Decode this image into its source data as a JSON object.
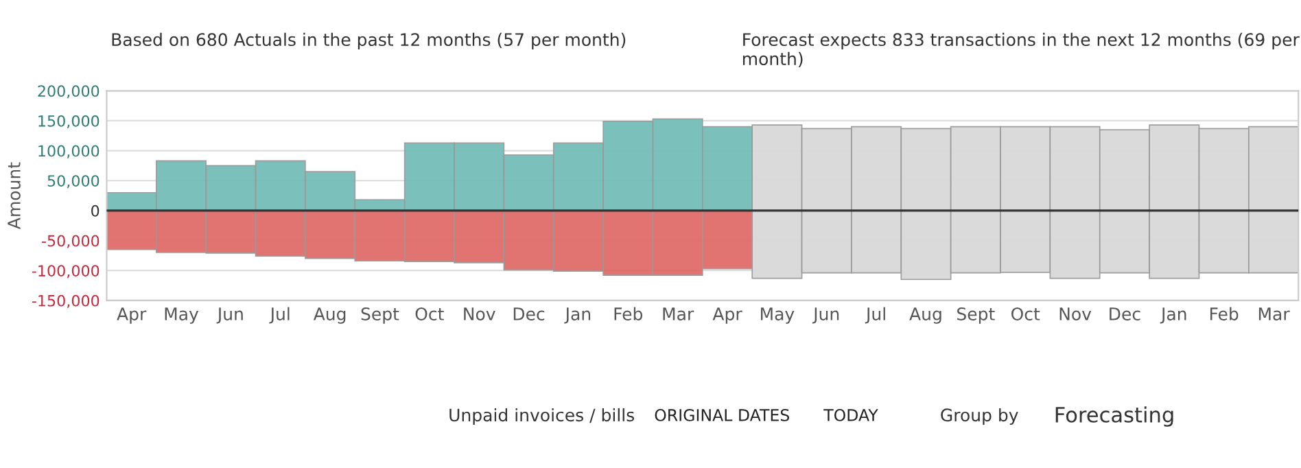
{
  "chart_data": {
    "type": "bar",
    "ylabel": "Amount",
    "categories": [
      "Apr",
      "May",
      "Jun",
      "Jul",
      "Aug",
      "Sept",
      "Oct",
      "Nov",
      "Dec",
      "Jan",
      "Feb",
      "Mar",
      "Apr",
      "May",
      "Jun",
      "Jul",
      "Aug",
      "Sept",
      "Oct",
      "Nov",
      "Dec",
      "Jan",
      "Feb",
      "Mar"
    ],
    "series": [
      {
        "color": "#74bdb7",
        "values": [
          30000,
          83000,
          75000,
          83000,
          65000,
          18000,
          113000,
          113000,
          93000,
          113000,
          149000,
          153000,
          140000,
          null,
          null,
          null,
          null,
          null,
          null,
          null,
          null,
          null,
          null,
          null
        ]
      },
      {
        "color": "#e06c6a",
        "values": [
          -65000,
          -70000,
          -71000,
          -76000,
          -80000,
          -84000,
          -85000,
          -87000,
          -99000,
          -101000,
          -108000,
          -108000,
          -97000,
          null,
          null,
          null,
          null,
          null,
          null,
          null,
          null,
          null,
          null,
          null
        ]
      },
      {
        "color": "#d9d9d9",
        "values": [
          null,
          null,
          null,
          null,
          null,
          null,
          null,
          null,
          null,
          null,
          null,
          null,
          null,
          143000,
          137000,
          140000,
          137000,
          140000,
          140000,
          140000,
          135000,
          143000,
          137000,
          140000
        ]
      },
      {
        "color": "#d9d9d9",
        "values": [
          null,
          null,
          null,
          null,
          null,
          null,
          null,
          null,
          null,
          null,
          null,
          null,
          null,
          -113000,
          -104000,
          -104000,
          -115000,
          -104000,
          -103000,
          -113000,
          -104000,
          -113000,
          -104000,
          -104000
        ]
      }
    ],
    "ylim": [
      -150000,
      200000
    ],
    "yticks": [
      {
        "value": -150000,
        "label": "-150,000"
      },
      {
        "value": -100000,
        "label": "-100,000"
      },
      {
        "value": -50000,
        "label": "-50,000"
      },
      0,
      {
        "value": 50000,
        "label": "50,000"
      },
      {
        "value": 100000,
        "label": "100,000"
      },
      {
        "value": 150000,
        "label": "150,000"
      },
      {
        "value": 200000,
        "label": "200,000"
      }
    ],
    "grid": "y",
    "annotations": [
      "Based on 680 Actuals in the past 12 months (57 per month)",
      "Forecast expects 833 transactions in the next 12 months (69 per month)",
      "Unpaid invoices / bills",
      "ORIGINAL DATES",
      "TODAY",
      "Group by",
      "Forecasting"
    ]
  }
}
